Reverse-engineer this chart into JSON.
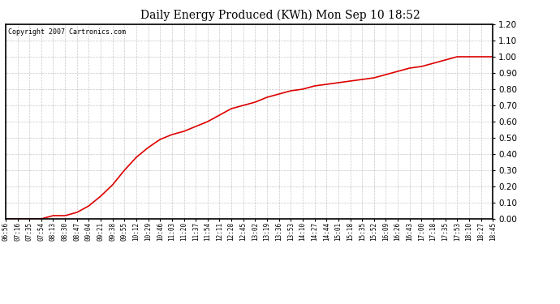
{
  "title": "Daily Energy Produced (KWh) Mon Sep 10 18:52",
  "copyright_text": "Copyright 2007 Cartronics.com",
  "line_color": "#dd0000",
  "background_color": "#ffffff",
  "plot_bg_color": "#ffffff",
  "grid_color": "#b0b0b0",
  "ylim": [
    0.0,
    1.2
  ],
  "yticks": [
    0.0,
    0.1,
    0.2,
    0.3,
    0.4,
    0.5,
    0.6,
    0.7,
    0.8,
    0.9,
    1.0,
    1.1,
    1.2
  ],
  "x_labels": [
    "06:56",
    "07:16",
    "07:35",
    "07:54",
    "08:13",
    "08:30",
    "08:47",
    "09:04",
    "09:21",
    "09:38",
    "09:55",
    "10:12",
    "10:29",
    "10:46",
    "11:03",
    "11:20",
    "11:37",
    "11:54",
    "12:11",
    "12:28",
    "12:45",
    "13:02",
    "13:19",
    "13:36",
    "13:53",
    "14:10",
    "14:27",
    "14:44",
    "15:01",
    "15:18",
    "15:35",
    "15:52",
    "16:09",
    "16:26",
    "16:43",
    "17:00",
    "17:18",
    "17:35",
    "17:53",
    "18:10",
    "18:27",
    "18:45"
  ],
  "y_values": [
    0.0,
    0.0,
    0.0,
    0.0,
    0.02,
    0.02,
    0.04,
    0.08,
    0.14,
    0.21,
    0.3,
    0.38,
    0.44,
    0.49,
    0.52,
    0.54,
    0.57,
    0.6,
    0.64,
    0.68,
    0.7,
    0.72,
    0.75,
    0.77,
    0.79,
    0.8,
    0.82,
    0.83,
    0.84,
    0.85,
    0.86,
    0.87,
    0.89,
    0.91,
    0.93,
    0.94,
    0.96,
    0.98,
    1.0,
    1.0,
    1.0,
    1.0
  ]
}
